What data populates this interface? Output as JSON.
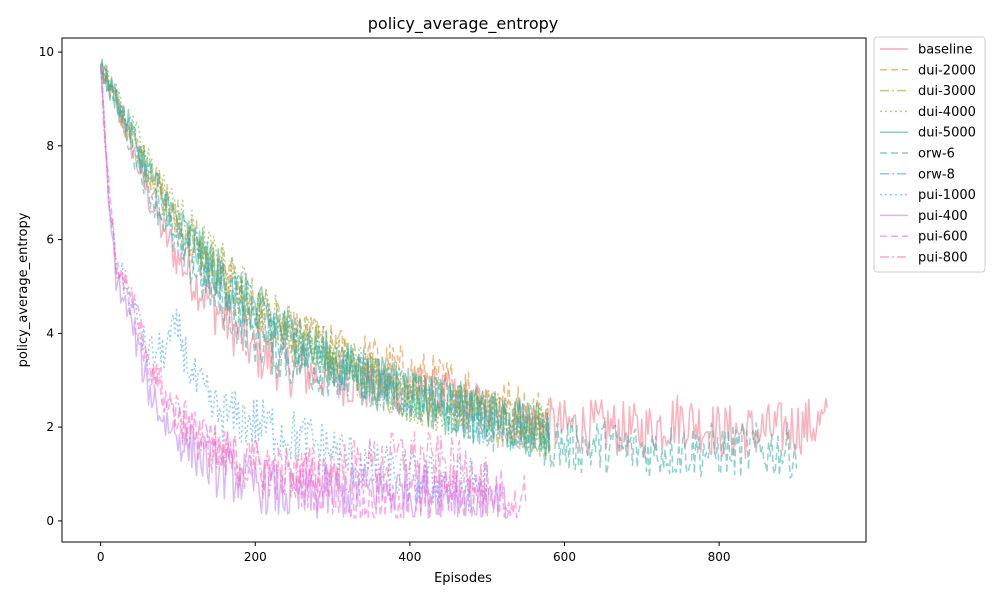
{
  "chart_data": {
    "type": "line",
    "title": "policy_average_entropy",
    "xlabel": "Episodes",
    "ylabel": "policy_average_entropy",
    "xlim": [
      -50,
      990
    ],
    "ylim": [
      -0.45,
      10.3
    ],
    "xticks": [
      0,
      200,
      400,
      600,
      800
    ],
    "yticks": [
      0,
      2,
      4,
      6,
      8,
      10
    ],
    "grid": false,
    "legend_position": "outside-right-top",
    "series": [
      {
        "name": "baseline",
        "color": "#f77189",
        "dash": "",
        "x": [
          0,
          20,
          40,
          60,
          80,
          100,
          150,
          200,
          250,
          300,
          350,
          400,
          450,
          500,
          550,
          600,
          650,
          700,
          750,
          800,
          850,
          900,
          940
        ],
        "y": [
          9.7,
          8.9,
          8.0,
          7.0,
          6.2,
          5.6,
          4.5,
          3.6,
          3.2,
          3.1,
          2.9,
          2.8,
          2.6,
          2.3,
          2.1,
          2.0,
          2.0,
          1.9,
          2.2,
          1.9,
          1.9,
          2.0,
          2.1
        ]
      },
      {
        "name": "dui-2000",
        "color": "#dc8932",
        "dash": "7,4",
        "x": [
          0,
          20,
          40,
          60,
          80,
          100,
          150,
          200,
          250,
          300,
          350,
          400,
          450,
          500,
          550,
          580
        ],
        "y": [
          9.7,
          9.0,
          8.2,
          7.5,
          6.9,
          6.2,
          5.2,
          4.4,
          3.9,
          3.6,
          3.4,
          3.1,
          2.9,
          2.6,
          2.3,
          2.2
        ]
      },
      {
        "name": "dui-3000",
        "color": "#ae9d31",
        "dash": "9,3,2,3",
        "x": [
          0,
          20,
          40,
          60,
          80,
          100,
          150,
          200,
          250,
          300,
          350,
          400,
          450,
          500,
          550,
          580
        ],
        "y": [
          9.7,
          9.0,
          8.3,
          7.6,
          7.0,
          6.4,
          5.4,
          4.6,
          4.0,
          3.5,
          3.0,
          2.7,
          2.5,
          2.2,
          2.0,
          1.9
        ]
      },
      {
        "name": "dui-4000",
        "color": "#77ab31",
        "dash": "2,3",
        "x": [
          0,
          20,
          40,
          60,
          80,
          100,
          150,
          200,
          250,
          300,
          350,
          400,
          450,
          500,
          550,
          580
        ],
        "y": [
          9.7,
          9.1,
          8.4,
          7.7,
          7.1,
          6.5,
          5.5,
          4.6,
          4.0,
          3.5,
          3.1,
          2.7,
          2.4,
          2.2,
          2.0,
          1.9
        ]
      },
      {
        "name": "dui-5000",
        "color": "#33b07a",
        "dash": "",
        "x": [
          0,
          20,
          40,
          60,
          80,
          100,
          150,
          200,
          250,
          300,
          350,
          400,
          450,
          500,
          550,
          580
        ],
        "y": [
          9.7,
          9.0,
          8.3,
          7.5,
          6.9,
          6.3,
          5.3,
          4.5,
          3.9,
          3.4,
          3.0,
          2.7,
          2.4,
          2.2,
          2.0,
          1.9
        ]
      },
      {
        "name": "orw-6",
        "color": "#36ada4",
        "dash": "7,4",
        "x": [
          0,
          20,
          40,
          60,
          80,
          100,
          150,
          200,
          250,
          300,
          350,
          400,
          450,
          500,
          550,
          600,
          650,
          700,
          750,
          800,
          850,
          900
        ],
        "y": [
          9.7,
          8.9,
          8.0,
          7.2,
          6.5,
          5.8,
          4.8,
          3.9,
          3.4,
          3.2,
          3.0,
          2.8,
          2.5,
          2.2,
          1.9,
          1.6,
          1.6,
          1.5,
          1.5,
          1.5,
          1.5,
          1.5
        ]
      },
      {
        "name": "orw-8",
        "color": "#38a9c5",
        "dash": "9,3,2,3",
        "x": [
          0,
          20,
          40,
          60,
          80,
          100,
          150,
          200,
          250,
          300,
          350,
          400,
          450,
          500,
          550,
          580
        ],
        "y": [
          9.7,
          9.0,
          8.2,
          7.4,
          6.8,
          6.2,
          5.2,
          4.4,
          3.8,
          3.3,
          3.0,
          2.7,
          2.4,
          2.1,
          1.9,
          1.8
        ]
      },
      {
        "name": "pui-1000",
        "color": "#3ba3ec",
        "dash": "2,3",
        "x": [
          0,
          10,
          20,
          40,
          60,
          80,
          100,
          120,
          150,
          200,
          250,
          300,
          350,
          400,
          450,
          500
        ],
        "y": [
          9.7,
          7.0,
          5.6,
          4.6,
          3.6,
          3.6,
          4.1,
          3.0,
          2.3,
          2.1,
          1.8,
          1.5,
          1.1,
          0.9,
          0.8,
          0.8
        ]
      },
      {
        "name": "pui-400",
        "color": "#bb83f4",
        "dash": "",
        "x": [
          0,
          10,
          20,
          40,
          60,
          80,
          100,
          150,
          200,
          250,
          300,
          350,
          400,
          450,
          500,
          530
        ],
        "y": [
          9.7,
          6.8,
          5.2,
          4.2,
          2.9,
          2.2,
          1.8,
          1.1,
          0.8,
          0.5,
          0.6,
          0.7,
          0.6,
          0.7,
          0.3,
          0.2
        ]
      },
      {
        "name": "pui-600",
        "color": "#f564d4",
        "dash": "7,4",
        "x": [
          0,
          10,
          20,
          40,
          60,
          80,
          100,
          150,
          200,
          250,
          300,
          350,
          400,
          450,
          500,
          550
        ],
        "y": [
          9.7,
          7.2,
          5.5,
          4.6,
          3.4,
          2.7,
          2.2,
          1.4,
          1.2,
          0.9,
          0.7,
          0.3,
          0.5,
          0.6,
          0.6,
          0.5
        ]
      },
      {
        "name": "pui-800",
        "color": "#f66bb3",
        "dash": "9,3,2,3",
        "x": [
          0,
          10,
          20,
          40,
          60,
          80,
          100,
          150,
          200,
          250,
          300,
          350,
          400,
          450,
          500
        ],
        "y": [
          9.7,
          7.0,
          5.4,
          4.8,
          3.6,
          2.8,
          2.2,
          1.5,
          1.1,
          1.0,
          1.1,
          1.2,
          1.4,
          1.2,
          0.9
        ]
      }
    ]
  }
}
